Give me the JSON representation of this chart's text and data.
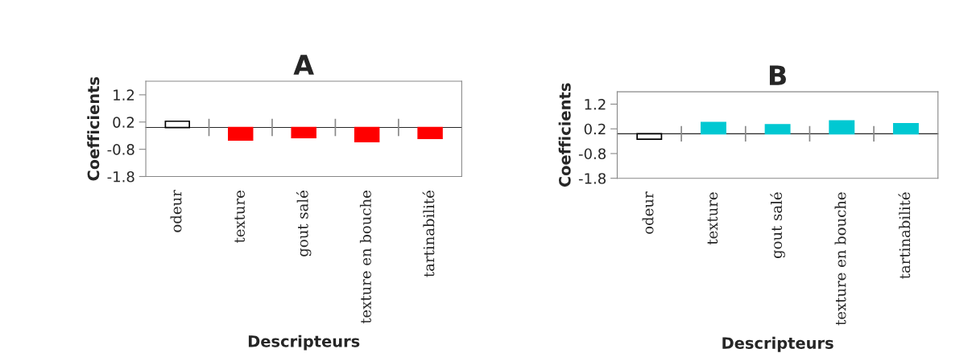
{
  "chart_data": [
    {
      "type": "bar",
      "title": "A",
      "xlabel": "Descripteurs",
      "ylabel": "Coefficients",
      "categories": [
        "odeur",
        "texture",
        "gout salé",
        "texture en bouche",
        "tartinabilité"
      ],
      "values": [
        0.23,
        -0.46,
        -0.37,
        -0.52,
        -0.4
      ],
      "colors": [
        "#ffffff",
        "#ff0000",
        "#ff0000",
        "#ff0000",
        "#ff0000"
      ],
      "ylim": [
        -1.8,
        1.7
      ],
      "yticks": [
        -1.8,
        -0.8,
        0.2,
        1.2
      ],
      "grid": false,
      "legend": false
    },
    {
      "type": "bar",
      "title": "B",
      "xlabel": "Descripteurs",
      "ylabel": "Coefficients",
      "categories": [
        "odeur",
        "texture",
        "gout salé",
        "texture en bouche",
        "tartinabilité"
      ],
      "values": [
        -0.22,
        0.46,
        0.37,
        0.52,
        0.41
      ],
      "colors": [
        "#ffffff",
        "#00c8d2",
        "#00c8d2",
        "#00c8d2",
        "#00c8d2"
      ],
      "ylim": [
        -1.8,
        1.7
      ],
      "yticks": [
        -1.8,
        -0.8,
        0.2,
        1.2
      ],
      "grid": false,
      "legend": false
    }
  ]
}
